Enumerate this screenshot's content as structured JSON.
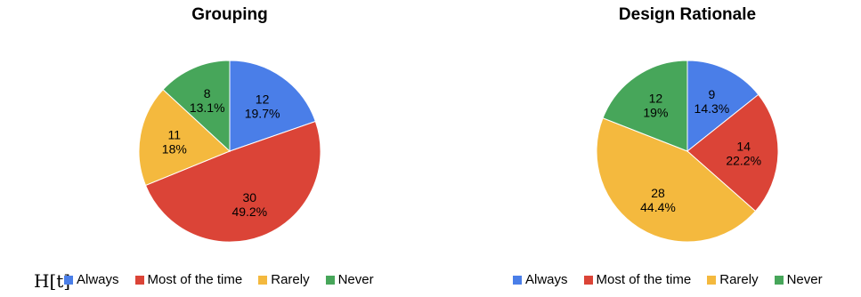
{
  "figure_mark": "H[t]",
  "chart_data": [
    {
      "type": "pie",
      "title": "Grouping",
      "legend_position": "bottom",
      "categories": [
        "Always",
        "Most of the time",
        "Rarely",
        "Never"
      ],
      "values": [
        12,
        30,
        11,
        8
      ],
      "percent_labels": [
        "19.7%",
        "49.2%",
        "18%",
        "13.1%"
      ],
      "colors": [
        "#4a7ee8",
        "#db4437",
        "#f4b93e",
        "#47a65a"
      ]
    },
    {
      "type": "pie",
      "title": "Design Rationale",
      "legend_position": "bottom",
      "categories": [
        "Always",
        "Most of the time",
        "Rarely",
        "Never"
      ],
      "values": [
        9,
        14,
        28,
        12
      ],
      "percent_labels": [
        "14.3%",
        "22.2%",
        "44.4%",
        "19%"
      ],
      "colors": [
        "#4a7ee8",
        "#db4437",
        "#f4b93e",
        "#47a65a"
      ]
    }
  ]
}
